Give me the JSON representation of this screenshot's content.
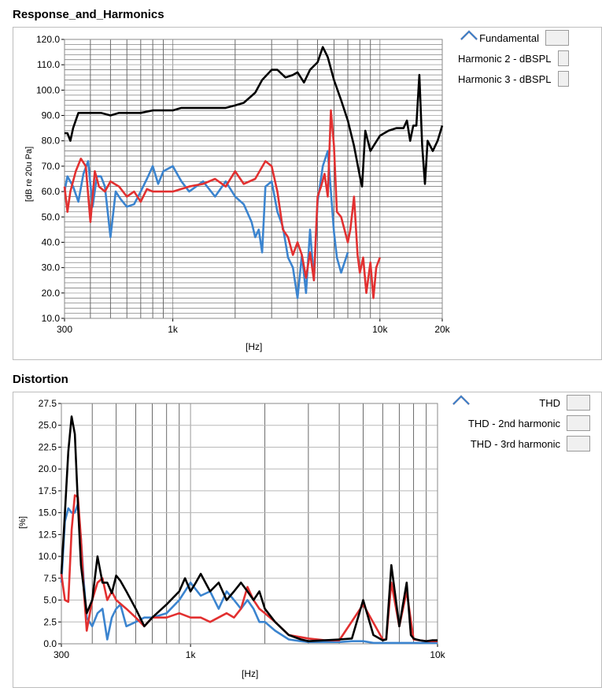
{
  "chart_data": [
    {
      "title": "Response_and_Harmonics",
      "type": "line",
      "xlabel": "[Hz]",
      "ylabel": "[dB re 20u Pa]",
      "xscale": "log",
      "xlim": [
        300,
        20000
      ],
      "ylim": [
        10,
        120
      ],
      "xticks": [
        {
          "value": 300,
          "label": "300"
        },
        {
          "value": 1000,
          "label": "1k"
        },
        {
          "value": 10000,
          "label": "10k"
        },
        {
          "value": 20000,
          "label": "20k"
        }
      ],
      "yticks": [
        {
          "value": 10,
          "label": "10.0"
        },
        {
          "value": 20,
          "label": "20.0"
        },
        {
          "value": 30,
          "label": "30.0"
        },
        {
          "value": 40,
          "label": "40.0"
        },
        {
          "value": 50,
          "label": "50.0"
        },
        {
          "value": 60,
          "label": "60.0"
        },
        {
          "value": 70,
          "label": "70.0"
        },
        {
          "value": 80,
          "label": "80.0"
        },
        {
          "value": 90,
          "label": "90.0"
        },
        {
          "value": 100,
          "label": "100.0"
        },
        {
          "value": 110,
          "label": "110.0"
        },
        {
          "value": 120,
          "label": "120.0"
        }
      ],
      "minor_y_step": 2,
      "grid": true,
      "legend_position": "right",
      "series": [
        {
          "name": "Fundamental",
          "color": "#000000",
          "x": [
            300,
            310,
            320,
            330,
            350,
            380,
            400,
            450,
            500,
            550,
            600,
            700,
            800,
            900,
            1000,
            1100,
            1200,
            1400,
            1600,
            1800,
            2000,
            2200,
            2500,
            2700,
            3000,
            3200,
            3500,
            3800,
            4000,
            4300,
            4600,
            5000,
            5300,
            5600,
            6000,
            6500,
            7000,
            7500,
            8000,
            8200,
            8500,
            9000,
            10000,
            11000,
            12000,
            13000,
            13500,
            14000,
            14500,
            15000,
            15500,
            16000,
            16500,
            17000,
            18000,
            19000,
            20000
          ],
          "y": [
            83,
            83,
            80,
            85,
            91,
            91,
            91,
            91,
            90,
            91,
            91,
            91,
            92,
            92,
            92,
            93,
            93,
            93,
            93,
            93,
            94,
            95,
            99,
            104,
            108,
            108,
            105,
            106,
            107,
            103,
            108,
            111,
            117,
            113,
            104,
            96,
            88,
            78,
            66,
            62,
            84,
            76,
            82,
            84,
            85,
            85,
            88,
            80,
            86,
            86,
            106,
            78,
            63,
            80,
            76,
            80,
            86
          ]
        },
        {
          "name": "Harmonic 2 - dBSPL",
          "color": "#e23030",
          "x": [
            300,
            310,
            320,
            340,
            360,
            380,
            400,
            420,
            440,
            470,
            500,
            550,
            600,
            650,
            700,
            750,
            800,
            900,
            1000,
            1200,
            1400,
            1600,
            1800,
            2000,
            2200,
            2500,
            2800,
            3000,
            3200,
            3400,
            3600,
            3800,
            4000,
            4200,
            4400,
            4600,
            4800,
            5000,
            5200,
            5400,
            5600,
            5800,
            6000,
            6200,
            6500,
            7000,
            7200,
            7500,
            7800,
            8000,
            8300,
            8600,
            9000,
            9300,
            9600,
            10000
          ],
          "y": [
            62,
            52,
            60,
            68,
            73,
            70,
            48,
            68,
            62,
            60,
            64,
            62,
            58,
            60,
            56,
            61,
            60,
            60,
            60,
            62,
            63,
            65,
            62,
            68,
            63,
            65,
            72,
            70,
            60,
            45,
            42,
            35,
            40,
            35,
            26,
            36,
            25,
            58,
            62,
            67,
            58,
            92,
            78,
            52,
            50,
            40,
            45,
            58,
            35,
            28,
            34,
            20,
            32,
            18,
            30,
            34
          ]
        },
        {
          "name": "Harmonic 3 - dBSPL",
          "color": "#3b84cf",
          "x": [
            300,
            310,
            330,
            350,
            370,
            390,
            410,
            430,
            450,
            470,
            500,
            530,
            560,
            600,
            650,
            700,
            750,
            800,
            850,
            900,
            1000,
            1100,
            1200,
            1400,
            1600,
            1800,
            2000,
            2200,
            2400,
            2500,
            2600,
            2700,
            2800,
            3000,
            3200,
            3400,
            3600,
            3800,
            4000,
            4200,
            4400,
            4600,
            4800,
            5000,
            5300,
            5600,
            5800,
            6000,
            6200,
            6500,
            7000
          ],
          "y": [
            60,
            66,
            62,
            56,
            67,
            72,
            54,
            66,
            66,
            62,
            42,
            60,
            57,
            54,
            55,
            60,
            65,
            70,
            63,
            68,
            70,
            64,
            60,
            64,
            58,
            64,
            58,
            55,
            48,
            42,
            45,
            36,
            62,
            64,
            52,
            46,
            34,
            30,
            18,
            35,
            20,
            45,
            25,
            56,
            70,
            76,
            60,
            44,
            34,
            28,
            36
          ]
        }
      ]
    },
    {
      "title": "Distortion",
      "type": "line",
      "xlabel": "[Hz]",
      "ylabel": "[%]",
      "xscale": "log",
      "xlim": [
        300,
        10000
      ],
      "ylim": [
        0,
        27.5
      ],
      "xticks": [
        {
          "value": 300,
          "label": "300"
        },
        {
          "value": 1000,
          "label": "1k"
        },
        {
          "value": 10000,
          "label": "10k"
        }
      ],
      "yticks": [
        {
          "value": 0,
          "label": "0.0"
        },
        {
          "value": 2.5,
          "label": "2.5"
        },
        {
          "value": 5,
          "label": "5.0"
        },
        {
          "value": 7.5,
          "label": "7.5"
        },
        {
          "value": 10,
          "label": "10.0"
        },
        {
          "value": 12.5,
          "label": "12.5"
        },
        {
          "value": 15,
          "label": "15.0"
        },
        {
          "value": 17.5,
          "label": "17.5"
        },
        {
          "value": 20,
          "label": "20.0"
        },
        {
          "value": 22.5,
          "label": "22.5"
        },
        {
          "value": 25,
          "label": "25.0"
        },
        {
          "value": 27.5,
          "label": "27.5"
        }
      ],
      "grid": true,
      "legend_position": "right",
      "series": [
        {
          "name": "THD",
          "color": "#000000",
          "x": [
            300,
            310,
            320,
            330,
            340,
            350,
            360,
            380,
            400,
            420,
            440,
            460,
            480,
            500,
            520,
            550,
            600,
            650,
            700,
            800,
            900,
            950,
            1000,
            1050,
            1100,
            1200,
            1300,
            1400,
            1500,
            1600,
            1700,
            1800,
            1900,
            2000,
            2200,
            2500,
            2800,
            3000,
            3500,
            4000,
            4500,
            5000,
            5500,
            6000,
            6200,
            6500,
            7000,
            7500,
            7800,
            8000,
            8200,
            8500,
            9000,
            9500,
            10000
          ],
          "y": [
            8,
            15,
            22,
            26,
            24,
            16,
            9,
            3.5,
            5,
            10,
            7,
            7,
            5.8,
            7.8,
            7.2,
            6,
            4,
            2,
            3,
            4.5,
            6,
            7.5,
            6,
            7,
            8,
            6,
            7,
            5,
            6,
            7,
            6,
            5,
            6,
            4,
            2.5,
            1,
            0.5,
            0.3,
            0.4,
            0.5,
            0.6,
            5,
            1,
            0.4,
            0.5,
            9,
            2,
            7,
            1,
            0.6,
            0.5,
            0.4,
            0.3,
            0.4,
            0.4
          ]
        },
        {
          "name": "THD - 2nd harmonic",
          "color": "#e23030",
          "x": [
            300,
            310,
            320,
            330,
            340,
            350,
            360,
            370,
            380,
            400,
            420,
            440,
            460,
            480,
            500,
            550,
            600,
            650,
            700,
            800,
            900,
            1000,
            1100,
            1200,
            1400,
            1500,
            1600,
            1700,
            1800,
            1900,
            2000,
            2200,
            2500,
            3000,
            3500,
            4000,
            5000,
            6000,
            6200,
            6500,
            7000,
            7500,
            8000,
            9000,
            10000
          ],
          "y": [
            8,
            5,
            4.8,
            13,
            17,
            16.8,
            12,
            6,
            1.5,
            5,
            7,
            7.5,
            5,
            6,
            5,
            4,
            3,
            2,
            3,
            3,
            3.5,
            3,
            3,
            2.5,
            3.5,
            3,
            4,
            6.5,
            5,
            4,
            3.5,
            2.5,
            1,
            0.6,
            0.4,
            0.4,
            4.5,
            0.5,
            0.5,
            7,
            2,
            6,
            0.5,
            0.3,
            0.3
          ]
        },
        {
          "name": "THD - 3rd harmonic",
          "color": "#3b84cf",
          "x": [
            300,
            310,
            320,
            330,
            340,
            350,
            360,
            370,
            380,
            400,
            420,
            440,
            460,
            480,
            500,
            520,
            550,
            600,
            650,
            700,
            800,
            900,
            1000,
            1100,
            1200,
            1300,
            1400,
            1500,
            1600,
            1700,
            1800,
            1900,
            2000,
            2200,
            2500,
            2800,
            3000,
            3500,
            4000,
            4500,
            5000,
            5500,
            6000,
            7000,
            8000,
            10000
          ],
          "y": [
            7,
            14,
            15.5,
            15,
            15,
            16,
            12,
            7,
            3,
            2,
            3.5,
            4,
            0.5,
            3,
            4,
            4.5,
            2,
            2.5,
            3,
            3,
            3.5,
            5,
            7,
            5.5,
            6,
            4,
            6,
            5,
            4,
            5,
            4,
            2.5,
            2.5,
            1.5,
            0.5,
            0.3,
            0.2,
            0.2,
            0.2,
            0.3,
            0.3,
            0.1,
            0.1,
            0.1,
            0.1,
            0.1
          ]
        }
      ]
    }
  ]
}
